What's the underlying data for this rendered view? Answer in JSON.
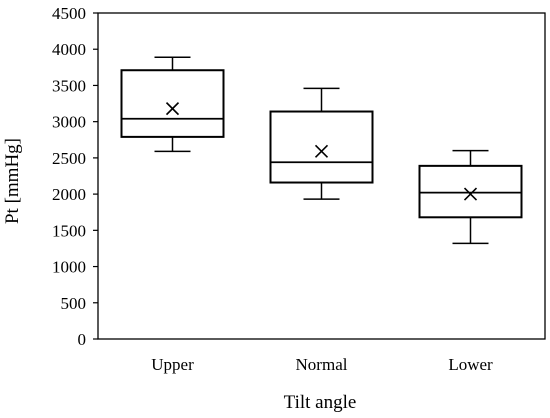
{
  "chart_data": {
    "type": "box",
    "title": "",
    "xlabel": "Tilt angle",
    "ylabel": "Pt [mmHg]",
    "ylim": [
      0,
      4500
    ],
    "yticks": [
      0,
      500,
      1000,
      1500,
      2000,
      2500,
      3000,
      3500,
      4000,
      4500
    ],
    "grid": false,
    "categories": [
      "Upper",
      "Normal",
      "Lower"
    ],
    "boxes": [
      {
        "category": "Upper",
        "min": 2590,
        "q1": 2790,
        "median": 3040,
        "q3": 3710,
        "max": 3890,
        "mean": 3180
      },
      {
        "category": "Normal",
        "min": 1930,
        "q1": 2160,
        "median": 2440,
        "q3": 3140,
        "max": 3460,
        "mean": 2590
      },
      {
        "category": "Lower",
        "min": 1320,
        "q1": 1680,
        "median": 2020,
        "q3": 2390,
        "max": 2600,
        "mean": 2000
      }
    ],
    "colors": {
      "stroke": "#000000",
      "fill": "#ffffff"
    }
  }
}
